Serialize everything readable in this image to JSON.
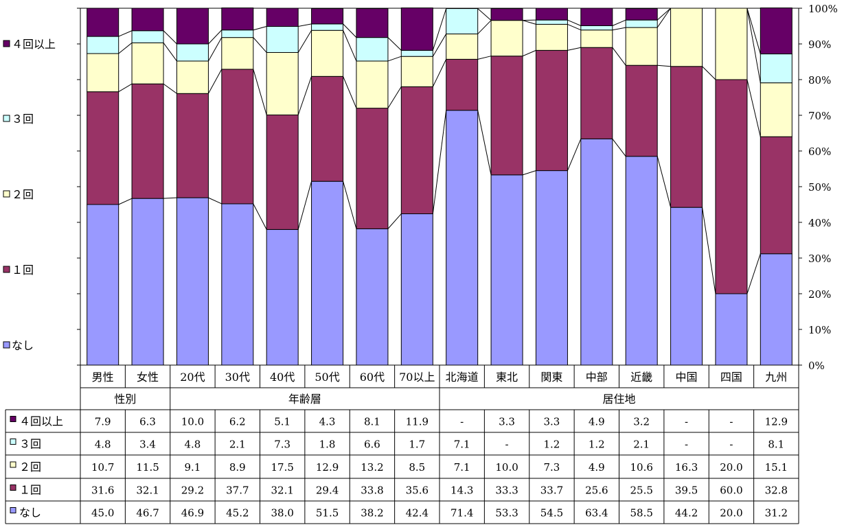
{
  "chart_data": {
    "type": "bar",
    "stacked": true,
    "percent_scale": true,
    "categories": [
      "男性",
      "女性",
      "20代",
      "30代",
      "40代",
      "50代",
      "60代",
      "70以上",
      "北海道",
      "東北",
      "関東",
      "中部",
      "近畿",
      "中国",
      "四国",
      "九州"
    ],
    "groups": [
      {
        "label": "性別",
        "members": [
          "男性",
          "女性"
        ]
      },
      {
        "label": "年齢層",
        "members": [
          "20代",
          "30代",
          "40代",
          "50代",
          "60代",
          "70以上"
        ]
      },
      {
        "label": "居住地",
        "members": [
          "北海道",
          "東北",
          "関東",
          "中部",
          "近畿",
          "中国",
          "四国",
          "九州"
        ]
      }
    ],
    "series": [
      {
        "name": "なし",
        "color": "#9999ff",
        "values": [
          45.0,
          46.7,
          46.9,
          45.2,
          38.0,
          51.5,
          38.2,
          42.4,
          71.4,
          53.3,
          54.5,
          63.4,
          58.5,
          44.2,
          20.0,
          31.2
        ],
        "labels": [
          "45.0",
          "46.7",
          "46.9",
          "45.2",
          "38.0",
          "51.5",
          "38.2",
          "42.4",
          "71.4",
          "53.3",
          "54.5",
          "63.4",
          "58.5",
          "44.2",
          "20.0",
          "31.2"
        ]
      },
      {
        "name": "１回",
        "color": "#993366",
        "values": [
          31.6,
          32.1,
          29.2,
          37.7,
          32.1,
          29.4,
          33.8,
          35.6,
          14.3,
          33.3,
          33.7,
          25.6,
          25.5,
          39.5,
          60.0,
          32.8
        ],
        "labels": [
          "31.6",
          "32.1",
          "29.2",
          "37.7",
          "32.1",
          "29.4",
          "33.8",
          "35.6",
          "14.3",
          "33.3",
          "33.7",
          "25.6",
          "25.5",
          "39.5",
          "60.0",
          "32.8"
        ]
      },
      {
        "name": "２回",
        "color": "#ffffcc",
        "values": [
          10.7,
          11.5,
          9.1,
          8.9,
          17.5,
          12.9,
          13.2,
          8.5,
          7.1,
          10.0,
          7.3,
          4.9,
          10.6,
          16.3,
          20.0,
          15.1
        ],
        "labels": [
          "10.7",
          "11.5",
          "9.1",
          "8.9",
          "17.5",
          "12.9",
          "13.2",
          "8.5",
          "7.1",
          "10.0",
          "7.3",
          "4.9",
          "10.6",
          "16.3",
          "20.0",
          "15.1"
        ]
      },
      {
        "name": "３回",
        "color": "#ccffff",
        "values": [
          4.8,
          3.4,
          4.8,
          2.1,
          7.3,
          1.8,
          6.6,
          1.7,
          7.1,
          0,
          1.2,
          1.2,
          2.1,
          0,
          0,
          8.1
        ],
        "labels": [
          "4.8",
          "3.4",
          "4.8",
          "2.1",
          "7.3",
          "1.8",
          "6.6",
          "1.7",
          "7.1",
          "-",
          "1.2",
          "1.2",
          "2.1",
          "-",
          "-",
          "8.1"
        ]
      },
      {
        "name": "４回以上",
        "color": "#660066",
        "values": [
          7.9,
          6.3,
          10.0,
          6.2,
          5.1,
          4.3,
          8.1,
          11.9,
          0,
          3.3,
          3.3,
          4.9,
          3.2,
          0,
          0,
          12.9
        ],
        "labels": [
          "7.9",
          "6.3",
          "10.0",
          "6.2",
          "5.1",
          "4.3",
          "8.1",
          "11.9",
          "-",
          "3.3",
          "3.3",
          "4.9",
          "3.2",
          "-",
          "-",
          "12.9"
        ]
      }
    ],
    "legend_order": [
      "４回以上",
      "３回",
      "２回",
      "１回",
      "なし"
    ],
    "y_axis": {
      "position": "right",
      "ylim": [
        0,
        100
      ],
      "ticks": [
        "0%",
        "10%",
        "20%",
        "30%",
        "40%",
        "50%",
        "60%",
        "70%",
        "80%",
        "90%",
        "100%"
      ]
    },
    "series_lines": true,
    "legend_placement": "left",
    "data_table": true
  }
}
